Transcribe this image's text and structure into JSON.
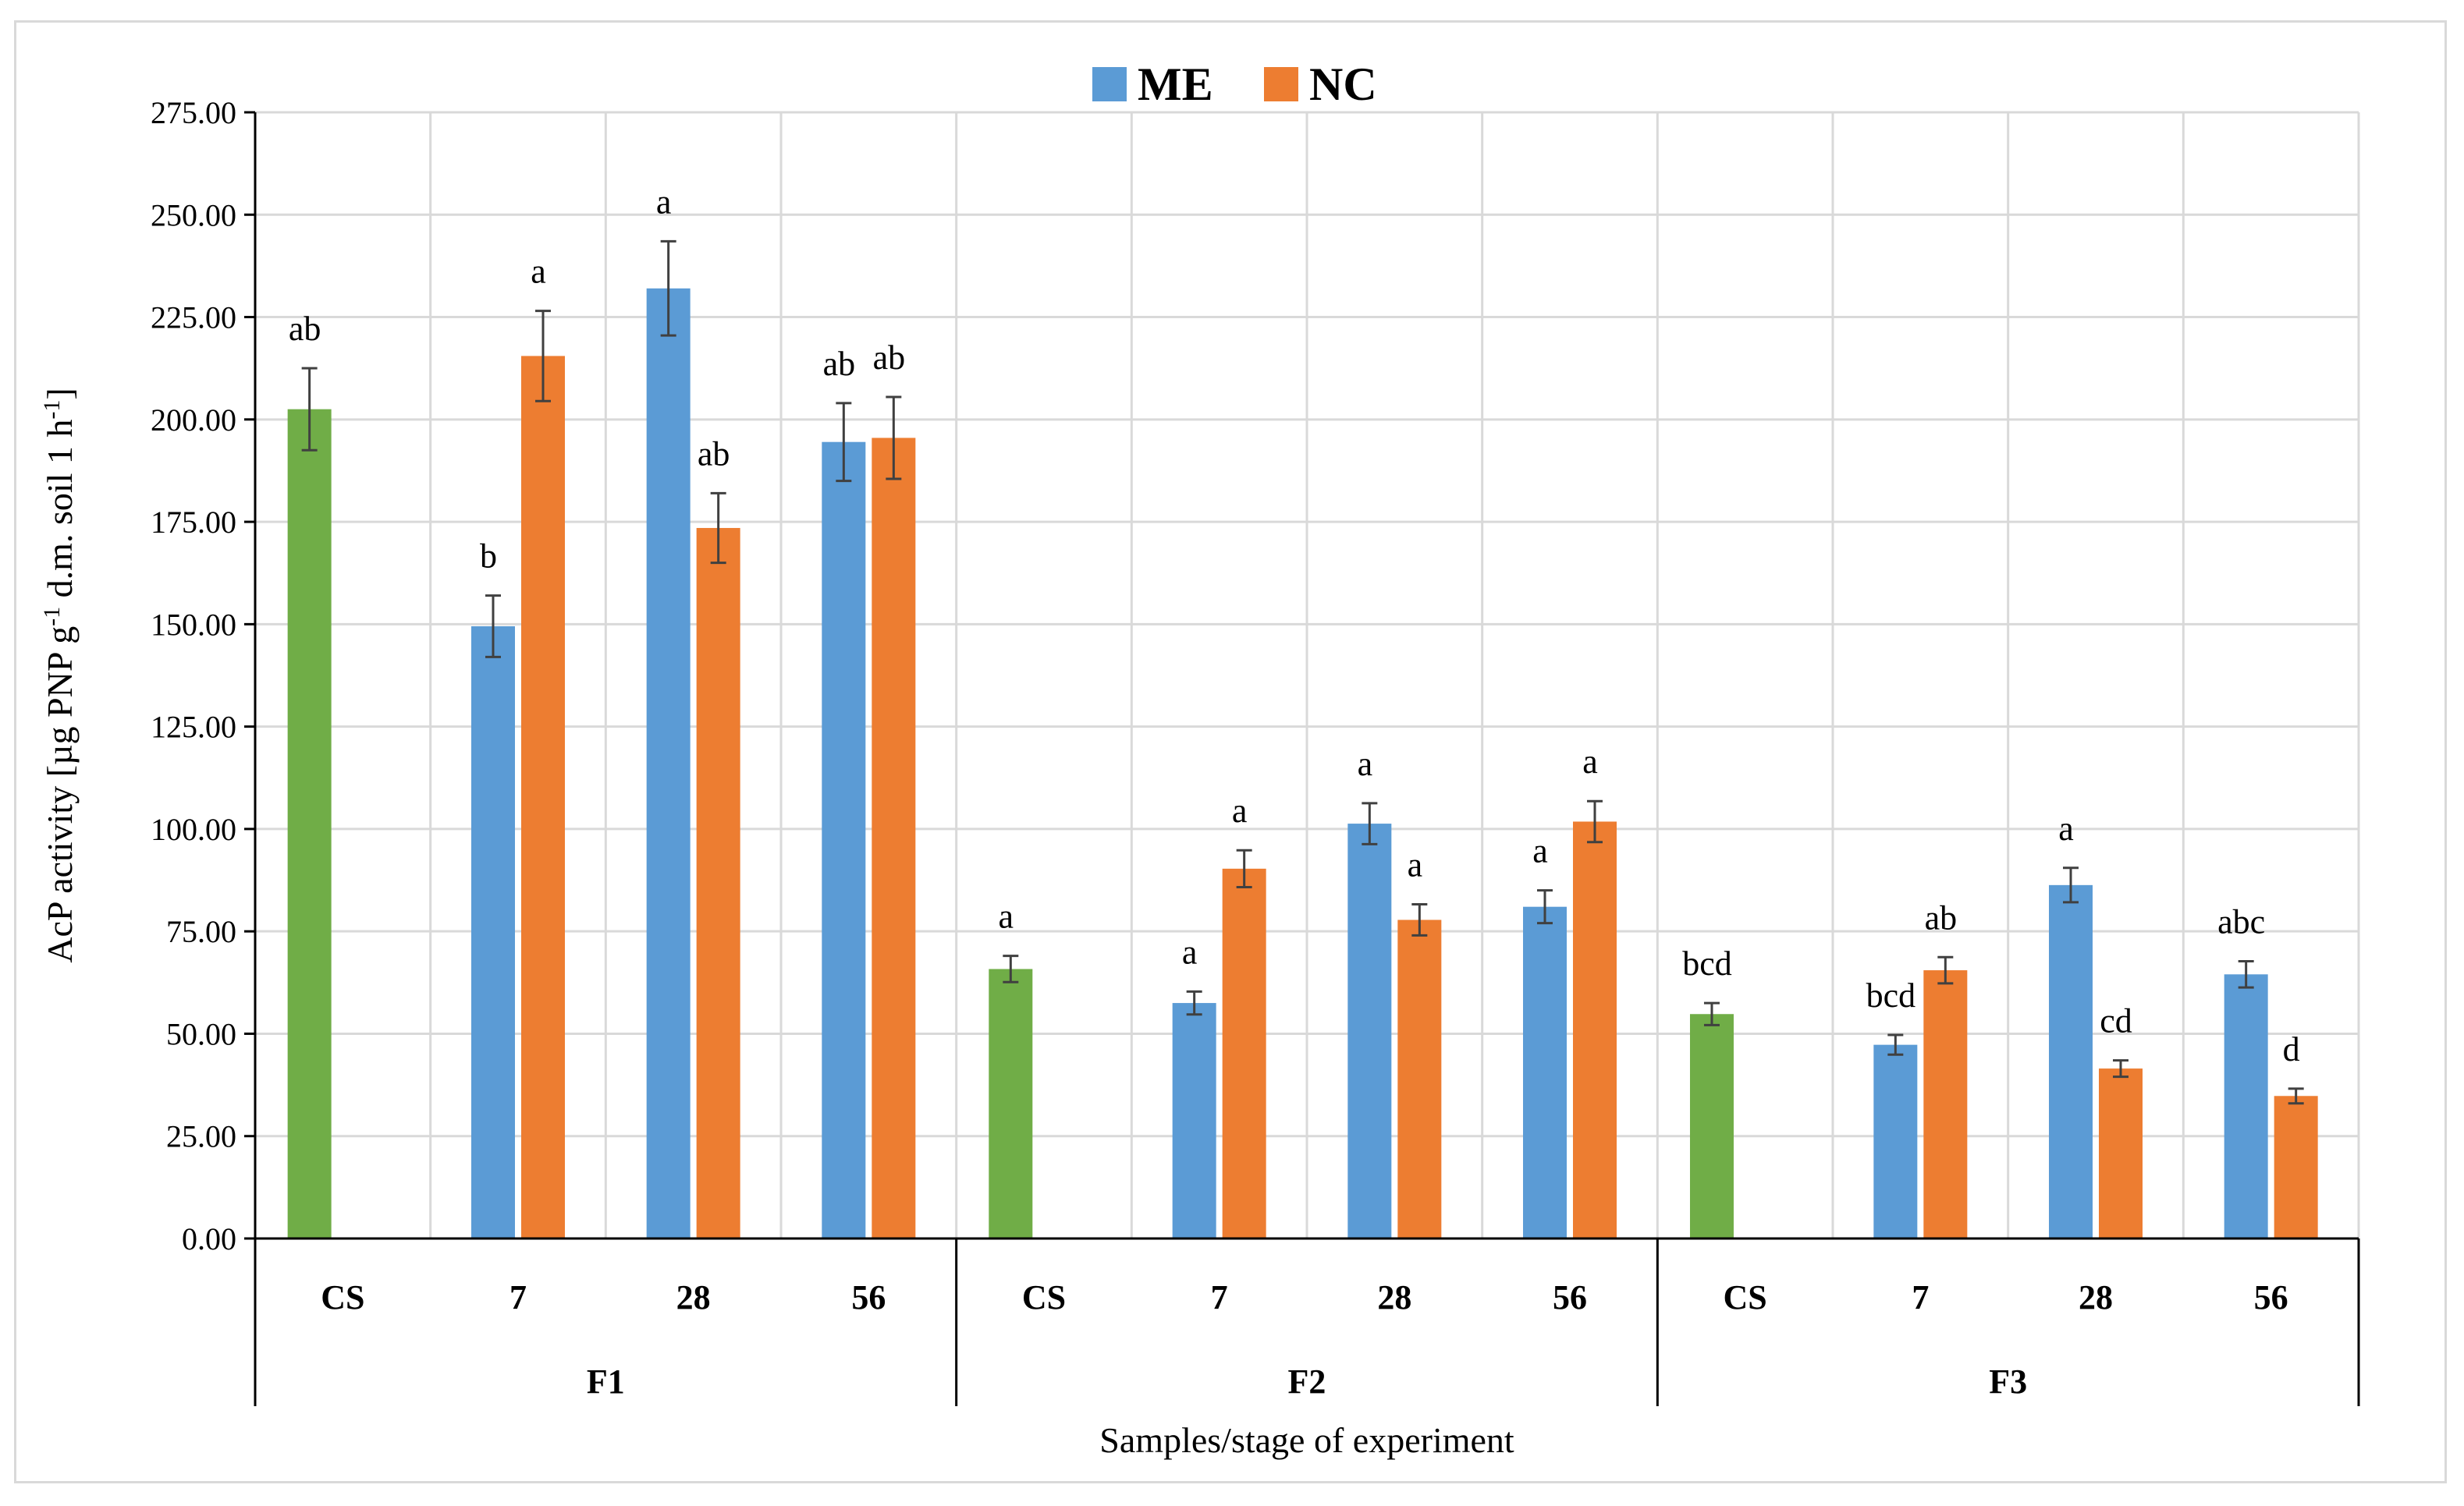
{
  "chart_data": {
    "type": "bar",
    "title": "",
    "ylabel_main": "AcP activity [µg PNP g",
    "ylabel_sup1": "-1",
    "ylabel_mid": " d.m. soil 1 h",
    "ylabel_sup2": "-1",
    "ylabel_end": "]",
    "xlabel": "Samples/stage of experiment",
    "ylim": [
      0,
      275
    ],
    "yticks": [
      "0.00",
      "25.00",
      "50.00",
      "75.00",
      "100.00",
      "125.00",
      "150.00",
      "175.00",
      "200.00",
      "225.00",
      "250.00",
      "275.00"
    ],
    "grid": true,
    "legend_position": "top-center",
    "colors": {
      "ME": "#5b9bd5",
      "NC": "#ed7d31",
      "CS": "#70ad47",
      "error": "#404040"
    },
    "groups": [
      {
        "name": "F1",
        "categories": [
          {
            "label": "CS",
            "bars": [
              {
                "series": "CS",
                "value": 202.5,
                "error": 10,
                "sig": "ab"
              }
            ]
          },
          {
            "label": "7",
            "bars": [
              {
                "series": "ME",
                "value": 149.5,
                "error": 7.5,
                "sig": "b"
              },
              {
                "series": "NC",
                "value": 215.5,
                "error": 11,
                "sig": "a"
              }
            ]
          },
          {
            "label": "28",
            "bars": [
              {
                "series": "ME",
                "value": 232,
                "error": 11.5,
                "sig": "a"
              },
              {
                "series": "NC",
                "value": 173.5,
                "error": 8.5,
                "sig": "ab"
              }
            ]
          },
          {
            "label": "56",
            "bars": [
              {
                "series": "ME",
                "value": 194.5,
                "error": 9.5,
                "sig": "ab"
              },
              {
                "series": "NC",
                "value": 195.5,
                "error": 10,
                "sig": "ab"
              }
            ]
          }
        ]
      },
      {
        "name": "F2",
        "categories": [
          {
            "label": "CS",
            "bars": [
              {
                "series": "CS",
                "value": 65.8,
                "error": 3.2,
                "sig": "a"
              }
            ]
          },
          {
            "label": "7",
            "bars": [
              {
                "series": "ME",
                "value": 57.5,
                "error": 2.8,
                "sig": "a"
              },
              {
                "series": "NC",
                "value": 90.3,
                "error": 4.5,
                "sig": "a"
              }
            ]
          },
          {
            "label": "28",
            "bars": [
              {
                "series": "ME",
                "value": 101.3,
                "error": 5,
                "sig": "a"
              },
              {
                "series": "NC",
                "value": 77.8,
                "error": 3.8,
                "sig": "a"
              }
            ]
          },
          {
            "label": "56",
            "bars": [
              {
                "series": "ME",
                "value": 81,
                "error": 4,
                "sig": "a"
              },
              {
                "series": "NC",
                "value": 101.8,
                "error": 5,
                "sig": "a"
              }
            ]
          }
        ]
      },
      {
        "name": "F3",
        "categories": [
          {
            "label": "CS",
            "bars": [
              {
                "series": "CS",
                "value": 54.8,
                "error": 2.7,
                "sig": "bcd"
              }
            ]
          },
          {
            "label": "7",
            "bars": [
              {
                "series": "ME",
                "value": 47.3,
                "error": 2.4,
                "sig": "bcd"
              },
              {
                "series": "NC",
                "value": 65.5,
                "error": 3.2,
                "sig": "ab"
              }
            ]
          },
          {
            "label": "28",
            "bars": [
              {
                "series": "ME",
                "value": 86.3,
                "error": 4.2,
                "sig": "a"
              },
              {
                "series": "NC",
                "value": 41.5,
                "error": 2,
                "sig": "cd"
              }
            ]
          },
          {
            "label": "56",
            "bars": [
              {
                "series": "ME",
                "value": 64.5,
                "error": 3.2,
                "sig": "abc"
              },
              {
                "series": "NC",
                "value": 34.8,
                "error": 1.8,
                "sig": "d"
              }
            ]
          }
        ]
      }
    ],
    "legend": [
      {
        "series": "ME",
        "label": "ME"
      },
      {
        "series": "NC",
        "label": "NC"
      }
    ]
  }
}
